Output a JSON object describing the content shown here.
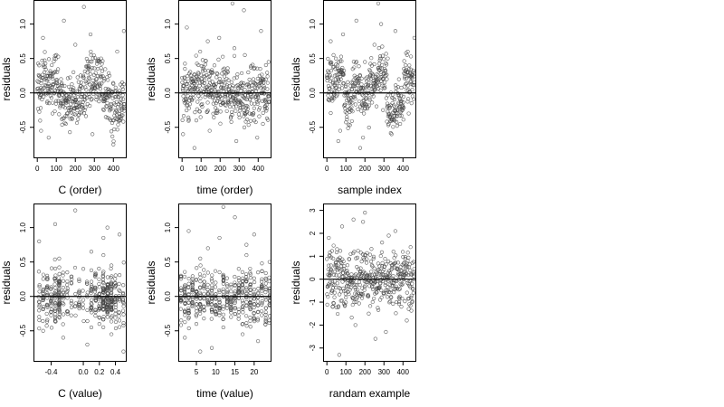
{
  "figure": {
    "background": "#ffffff",
    "point_color": "#444444",
    "line_color": "#000000"
  },
  "chart_data": [
    {
      "type": "scatter",
      "title": "",
      "xlabel": "C (order)",
      "ylabel": "residuals",
      "xlim": [
        -20,
        470
      ],
      "ylim": [
        -0.95,
        1.35
      ],
      "xticks": [
        0,
        100,
        200,
        300,
        400
      ],
      "xtick_labels": [
        "0",
        "100",
        "200",
        "300",
        "400"
      ],
      "yticks": [
        -0.5,
        0.0,
        0.5,
        1.0
      ],
      "ytick_labels": [
        "-0.5",
        "0.0",
        "0.5",
        "1.0"
      ],
      "hline": 0,
      "grid": false,
      "legend": "none",
      "profile": "index_wave",
      "x": [
        10,
        30,
        55,
        80,
        100,
        125,
        150,
        175,
        200,
        220,
        245,
        270,
        290,
        310,
        335,
        360,
        380,
        400,
        420,
        440,
        455,
        60,
        140,
        250,
        330,
        430,
        20,
        190,
        280,
        350
      ],
      "y": [
        0.4,
        0.8,
        0.1,
        -0.3,
        0.55,
        0.2,
        -0.45,
        0.05,
        0.7,
        -0.2,
        1.25,
        0.35,
        -0.6,
        0.15,
        0.5,
        -0.35,
        0.25,
        -0.75,
        0.6,
        -0.15,
        0.9,
        -0.65,
        1.05,
        -0.05,
        0.45,
        -0.4,
        -0.55,
        0.3,
        0.85,
        -0.25
      ]
    },
    {
      "type": "scatter",
      "title": "",
      "xlabel": "time (order)",
      "ylabel": "residuals",
      "xlim": [
        -20,
        470
      ],
      "ylim": [
        -0.95,
        1.35
      ],
      "xticks": [
        0,
        100,
        200,
        300,
        400
      ],
      "xtick_labels": [
        "0",
        "100",
        "200",
        "300",
        "400"
      ],
      "yticks": [
        -0.5,
        0.0,
        0.5,
        1.0
      ],
      "ytick_labels": [
        "-0.5",
        "0.0",
        "0.5",
        "1.0"
      ],
      "hline": 0,
      "grid": false,
      "legend": "none",
      "profile": "index_flat",
      "x": [
        5,
        25,
        50,
        75,
        95,
        120,
        145,
        170,
        195,
        215,
        240,
        265,
        285,
        305,
        330,
        355,
        375,
        395,
        415,
        435,
        455,
        65,
        135,
        255,
        325,
        425,
        15,
        185,
        275,
        345
      ],
      "y": [
        -0.6,
        0.95,
        0.2,
        -0.4,
        0.6,
        0.05,
        -0.55,
        0.4,
        0.8,
        -0.15,
        0.3,
        1.3,
        -0.7,
        0.1,
        0.55,
        -0.3,
        0.2,
        -0.65,
        0.9,
        -0.2,
        0.45,
        -0.8,
        0.75,
        -0.05,
        1.2,
        -0.45,
        0.35,
        -0.25,
        0.65,
        0.0
      ]
    },
    {
      "type": "scatter",
      "title": "",
      "xlabel": "sample index",
      "ylabel": "residuals",
      "xlim": [
        -20,
        470
      ],
      "ylim": [
        -0.95,
        1.35
      ],
      "xticks": [
        0,
        100,
        200,
        300,
        400
      ],
      "xtick_labels": [
        "0",
        "100",
        "200",
        "300",
        "400"
      ],
      "yticks": [
        -0.5,
        0.0,
        0.5,
        1.0
      ],
      "ytick_labels": [
        "-0.5",
        "0.0",
        "0.5",
        "1.0"
      ],
      "hline": 0,
      "grid": false,
      "legend": "none",
      "profile": "index_blocks",
      "x": [
        10,
        35,
        60,
        85,
        105,
        130,
        155,
        175,
        200,
        225,
        250,
        270,
        295,
        315,
        340,
        360,
        385,
        405,
        425,
        445,
        460,
        70,
        145,
        245,
        320,
        430,
        20,
        190,
        285,
        355
      ],
      "y": [
        0.3,
        0.55,
        -0.7,
        0.85,
        -0.35,
        0.15,
        1.05,
        -0.8,
        0.45,
        -0.1,
        0.7,
        1.3,
        -0.25,
        0.2,
        -0.6,
        0.9,
        -0.45,
        0.35,
        0.6,
        -0.15,
        0.8,
        -0.55,
        0.25,
        -0.05,
        0.5,
        -0.3,
        0.75,
        -0.65,
        1.0,
        -0.2
      ]
    },
    {
      "type": "scatter",
      "title": "",
      "xlabel": "C (value)",
      "ylabel": "residuals",
      "xlim": [
        -0.62,
        0.54
      ],
      "ylim": [
        -0.95,
        1.35
      ],
      "xticks": [
        -0.4,
        0.0,
        0.2,
        0.4
      ],
      "xtick_labels": [
        "-0.4",
        "0.0",
        "0.2",
        "0.4"
      ],
      "yticks": [
        -0.5,
        0.0,
        0.5,
        1.0
      ],
      "ytick_labels": [
        "-0.5",
        "0.0",
        "0.5",
        "1.0"
      ],
      "hline": 0,
      "grid": false,
      "legend": "none",
      "profile": "columns_c",
      "x": [
        -0.55,
        -0.5,
        -0.45,
        -0.35,
        -0.35,
        -0.3,
        -0.25,
        -0.15,
        -0.1,
        -0.05,
        0.0,
        0.05,
        0.1,
        0.15,
        0.2,
        0.25,
        0.3,
        0.35,
        0.35,
        0.4,
        0.45,
        0.5,
        -0.4,
        0.25,
        -0.2,
        0.1,
        0.45,
        -0.3,
        0.3,
        0.05
      ],
      "y": [
        0.8,
        -0.5,
        0.3,
        1.05,
        -0.3,
        0.55,
        -0.6,
        0.2,
        1.25,
        -0.15,
        0.4,
        -0.7,
        0.65,
        0.1,
        -0.4,
        0.85,
        -0.25,
        0.45,
        -0.55,
        0.15,
        0.9,
        -0.8,
        -0.1,
        0.6,
        0.35,
        -0.45,
        -0.35,
        0.0,
        1.0,
        -0.2
      ]
    },
    {
      "type": "scatter",
      "title": "",
      "xlabel": "time (value)",
      "ylabel": "residuals",
      "xlim": [
        0.3,
        24.5
      ],
      "ylim": [
        -0.95,
        1.35
      ],
      "xticks": [
        5,
        10,
        15,
        20
      ],
      "xtick_labels": [
        "5",
        "10",
        "15",
        "20"
      ],
      "yticks": [
        -0.5,
        0.0,
        0.5,
        1.0
      ],
      "ytick_labels": [
        "-0.5",
        "0.0",
        "0.5",
        "1.0"
      ],
      "hline": 0,
      "grid": false,
      "legend": "none",
      "profile": "columns_t",
      "x": [
        1,
        2,
        3,
        4,
        5,
        6,
        7,
        8,
        9,
        10,
        11,
        12,
        12,
        13,
        14,
        15,
        16,
        17,
        18,
        19,
        20,
        21,
        22,
        23,
        24,
        6,
        18,
        12,
        3,
        21
      ],
      "y": [
        0.3,
        -0.6,
        0.95,
        0.1,
        -0.4,
        0.55,
        -0.2,
        0.7,
        -0.75,
        0.2,
        0.85,
        -0.45,
        1.3,
        0.15,
        -0.3,
        1.15,
        0.4,
        -0.55,
        0.6,
        -0.1,
        0.9,
        -0.65,
        0.25,
        -0.35,
        0.5,
        -0.8,
        0.75,
        0.0,
        -0.2,
        0.35
      ]
    },
    {
      "type": "scatter",
      "title": "",
      "xlabel": "randam example",
      "ylabel": "residuals",
      "xlim": [
        -20,
        470
      ],
      "ylim": [
        -3.6,
        3.3
      ],
      "xticks": [
        0,
        100,
        200,
        300,
        400
      ],
      "xtick_labels": [
        "0",
        "100",
        "200",
        "300",
        "400"
      ],
      "yticks": [
        -3,
        -2,
        -1,
        0,
        1,
        2,
        3
      ],
      "ytick_labels": [
        "-3",
        "-2",
        "-1",
        "0",
        "1",
        "2",
        "3"
      ],
      "hline": 0,
      "grid": false,
      "legend": "none",
      "profile": "random",
      "x": [
        10,
        30,
        55,
        80,
        100,
        125,
        150,
        175,
        200,
        220,
        245,
        270,
        290,
        310,
        335,
        360,
        380,
        400,
        420,
        440,
        455,
        65,
        140,
        255,
        325,
        430,
        20,
        190,
        280,
        350
      ],
      "y": [
        1.8,
        -1.2,
        0.5,
        2.3,
        -0.8,
        1.1,
        -2.0,
        0.3,
        2.9,
        -1.5,
        0.9,
        -0.4,
        1.6,
        -2.3,
        0.7,
        2.1,
        -1.0,
        0.2,
        -1.8,
        1.4,
        -0.6,
        -3.3,
        2.6,
        -2.6,
        1.9,
        -1.3,
        0.4,
        2.5,
        -0.9,
        1.2
      ]
    }
  ]
}
